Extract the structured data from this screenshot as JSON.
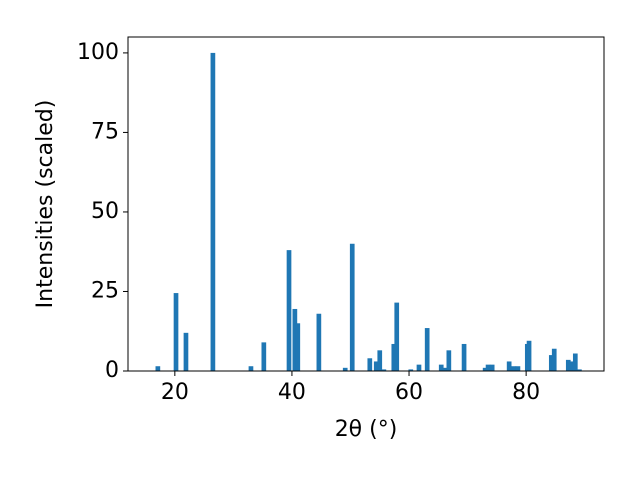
{
  "chart_data": {
    "type": "bar",
    "xlabel": "2θ (°)",
    "ylabel": "Intensities (scaled)",
    "x": [
      17.1,
      20.2,
      21.9,
      26.5,
      33.0,
      35.2,
      39.5,
      40.5,
      41.0,
      44.6,
      49.1,
      50.3,
      53.3,
      54.4,
      55.0,
      55.7,
      57.4,
      57.9,
      60.3,
      61.7,
      63.1,
      65.5,
      66.2,
      66.8,
      69.4,
      73.0,
      73.5,
      74.2,
      77.1,
      77.9,
      78.6,
      80.2,
      80.5,
      84.3,
      84.8,
      87.2,
      87.7,
      88.4,
      89.1
    ],
    "values": [
      1.5,
      24.5,
      12,
      100,
      1.5,
      9,
      38,
      19.5,
      15,
      18,
      1,
      40,
      4,
      3,
      6.5,
      0.5,
      8.5,
      21.5,
      0.5,
      2,
      13.5,
      2,
      1,
      6.5,
      8.5,
      1,
      2,
      2,
      3,
      1.5,
      1.5,
      8.5,
      9.5,
      5,
      7,
      3.5,
      3,
      5.5,
      0.5
    ],
    "color": "#1f77b4",
    "xlim": [
      12,
      93.3
    ],
    "ylim": [
      0,
      105
    ],
    "xticks": [
      20,
      40,
      60,
      80
    ],
    "yticks": [
      0,
      25,
      50,
      75,
      100
    ]
  }
}
